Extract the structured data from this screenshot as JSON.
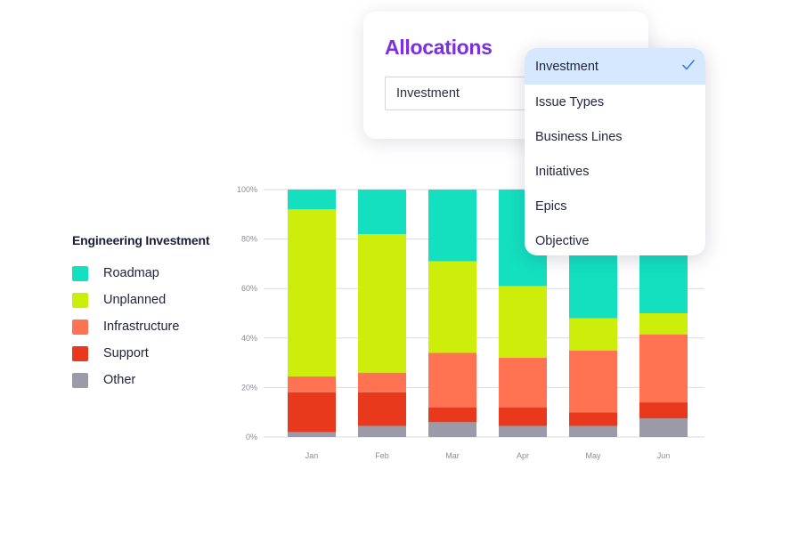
{
  "allocations": {
    "title": "Allocations",
    "selected_value": "Investment"
  },
  "dropdown": {
    "options": [
      {
        "label": "Investment",
        "selected": true
      },
      {
        "label": "Issue Types",
        "selected": false
      },
      {
        "label": "Business Lines",
        "selected": false
      },
      {
        "label": "Initiatives",
        "selected": false
      },
      {
        "label": "Epics",
        "selected": false
      },
      {
        "label": "Objective",
        "selected": false
      }
    ],
    "selected_bg": "#d6e8ff",
    "check_color": "#3b7de0"
  },
  "legend": {
    "title": "Engineering Investment"
  },
  "chart_data": {
    "type": "bar",
    "stacked": true,
    "categories": [
      "Jan",
      "Feb",
      "Mar",
      "Apr",
      "May",
      "Jun"
    ],
    "ylim": [
      0,
      100
    ],
    "yticks": [
      0,
      20,
      40,
      60,
      80,
      100
    ],
    "ytick_labels": [
      "0%",
      "20%",
      "40%",
      "60%",
      "80%",
      "100%"
    ],
    "grid": true,
    "legend_position": "left",
    "series": [
      {
        "name": "Other",
        "color": "#9a9aa8",
        "values": [
          2,
          4.5,
          6,
          4.5,
          4.5,
          7.5
        ]
      },
      {
        "name": "Support",
        "color": "#e8391d",
        "values": [
          16,
          13.5,
          6,
          7.5,
          5.5,
          6.5
        ]
      },
      {
        "name": "Infrastructure",
        "color": "#ff7353",
        "values": [
          6.5,
          8,
          22,
          20,
          25,
          27.5
        ]
      },
      {
        "name": "Unplanned",
        "color": "#ccee0a",
        "values": [
          67.5,
          56,
          37,
          29,
          13,
          8.5
        ]
      },
      {
        "name": "Roadmap",
        "color": "#14e0c0",
        "values": [
          8,
          18,
          29,
          39,
          52,
          50
        ]
      }
    ],
    "legend_order": [
      "Roadmap",
      "Unplanned",
      "Infrastructure",
      "Support",
      "Other"
    ]
  }
}
